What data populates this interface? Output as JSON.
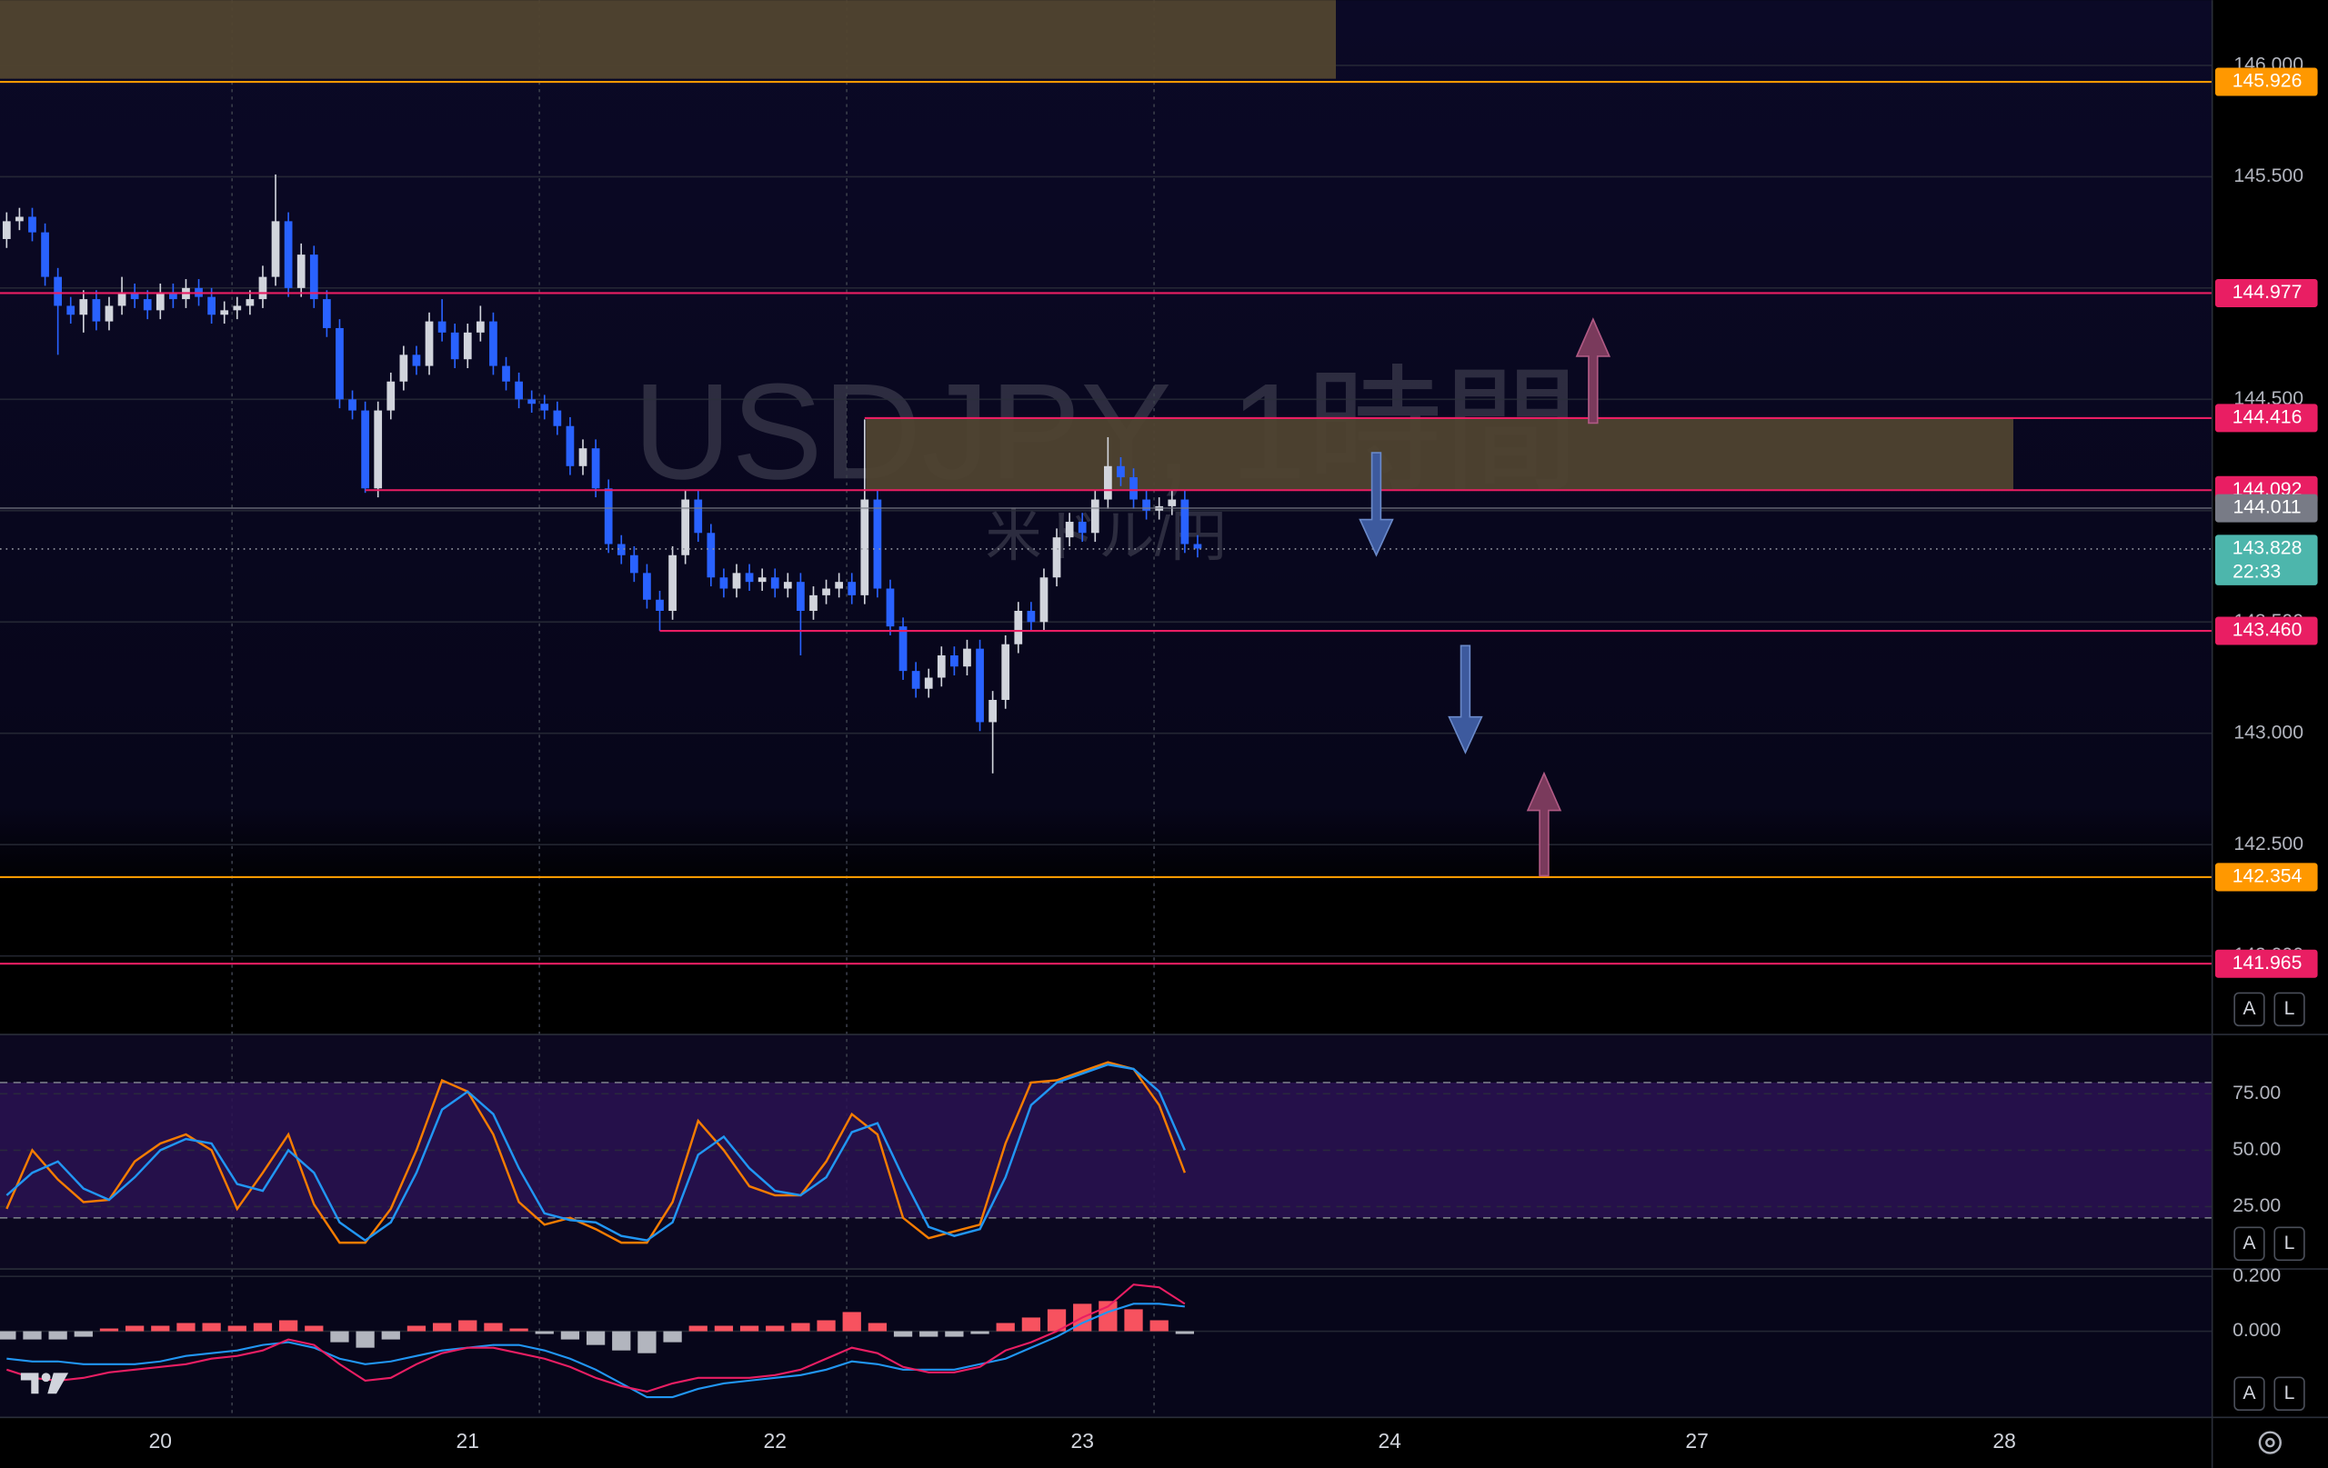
{
  "chart_data": [
    {
      "type": "candlestick",
      "watermark": {
        "symbol": "USDJPY, 1時間",
        "name": "米ドル/円"
      },
      "x": [
        -12,
        -11,
        -10,
        -9,
        -8,
        -7,
        -6,
        -5,
        -4,
        -3,
        -2,
        -1,
        0,
        1,
        2,
        3,
        4,
        5,
        6,
        7,
        8,
        9,
        10,
        11,
        12,
        13,
        14,
        15,
        16,
        17,
        18,
        19,
        20,
        21,
        22,
        23,
        24,
        25,
        26,
        27,
        28,
        29,
        30,
        31,
        32,
        33,
        34,
        35,
        36,
        37,
        38,
        39,
        40,
        41,
        42,
        43,
        44,
        45,
        46,
        47,
        48,
        49,
        50,
        51,
        52,
        53,
        54,
        55,
        56,
        57,
        58,
        59,
        60,
        61,
        62,
        63,
        64,
        65,
        66,
        67,
        68,
        69,
        70,
        71,
        72,
        73,
        74,
        75,
        76,
        77,
        78,
        79,
        80,
        81
      ],
      "open": [
        145.22,
        145.3,
        145.32,
        145.25,
        145.05,
        144.92,
        144.88,
        144.95,
        144.85,
        144.92,
        144.98,
        144.95,
        144.9,
        144.98,
        144.95,
        145.0,
        144.96,
        144.88,
        144.9,
        144.92,
        144.95,
        145.05,
        145.3,
        145.0,
        145.15,
        144.95,
        144.82,
        144.5,
        144.45,
        144.1,
        144.45,
        144.58,
        144.7,
        144.65,
        144.85,
        144.8,
        144.68,
        144.8,
        144.85,
        144.65,
        144.58,
        144.5,
        144.48,
        144.45,
        144.38,
        144.2,
        144.28,
        144.1,
        143.85,
        143.8,
        143.72,
        143.6,
        143.55,
        143.8,
        144.05,
        143.9,
        143.7,
        143.65,
        143.72,
        143.68,
        143.7,
        143.65,
        143.68,
        143.55,
        143.62,
        143.65,
        143.68,
        143.62,
        144.05,
        143.65,
        143.48,
        143.28,
        143.2,
        143.25,
        143.35,
        143.3,
        143.38,
        143.05,
        143.15,
        143.4,
        143.55,
        143.5,
        143.7,
        143.88,
        143.95,
        143.9,
        144.05,
        144.2,
        144.15,
        144.05,
        144.0,
        144.02,
        144.05,
        143.85
      ],
      "high": [
        145.34,
        145.36,
        145.36,
        145.29,
        145.09,
        144.96,
        144.99,
        144.99,
        144.96,
        145.05,
        145.02,
        144.99,
        145.02,
        145.02,
        145.04,
        145.04,
        145.0,
        144.94,
        144.96,
        144.99,
        145.1,
        145.51,
        145.34,
        145.2,
        145.19,
        144.99,
        144.86,
        144.54,
        144.49,
        144.49,
        144.62,
        144.74,
        144.74,
        144.89,
        144.95,
        144.84,
        144.84,
        144.92,
        144.89,
        144.69,
        144.62,
        144.54,
        144.52,
        144.49,
        144.42,
        144.32,
        144.32,
        144.14,
        143.89,
        143.84,
        143.76,
        143.64,
        143.84,
        144.09,
        144.09,
        143.94,
        143.74,
        143.76,
        143.76,
        143.74,
        143.74,
        143.72,
        143.72,
        143.66,
        143.69,
        143.72,
        143.72,
        144.41,
        144.09,
        143.69,
        143.52,
        143.32,
        143.29,
        143.39,
        143.39,
        143.42,
        143.42,
        143.19,
        143.44,
        143.59,
        143.59,
        143.74,
        143.92,
        143.99,
        143.99,
        144.09,
        144.33,
        144.24,
        144.19,
        144.09,
        144.06,
        144.09,
        144.09,
        143.89
      ],
      "low": [
        145.18,
        145.26,
        145.21,
        145.01,
        144.7,
        144.84,
        144.8,
        144.81,
        144.81,
        144.88,
        144.91,
        144.86,
        144.86,
        144.91,
        144.91,
        144.92,
        144.84,
        144.84,
        144.86,
        144.88,
        144.91,
        145.01,
        144.96,
        144.96,
        144.91,
        144.78,
        144.46,
        144.41,
        144.08,
        144.06,
        144.41,
        144.54,
        144.61,
        144.61,
        144.76,
        144.64,
        144.64,
        144.76,
        144.61,
        144.54,
        144.46,
        144.44,
        144.41,
        144.34,
        144.16,
        144.16,
        144.06,
        143.81,
        143.76,
        143.68,
        143.56,
        143.46,
        143.51,
        143.76,
        143.86,
        143.66,
        143.61,
        143.61,
        143.64,
        143.64,
        143.61,
        143.61,
        143.35,
        143.51,
        143.58,
        143.61,
        143.58,
        143.58,
        143.61,
        143.44,
        143.24,
        143.16,
        143.16,
        143.21,
        143.26,
        143.26,
        143.01,
        142.82,
        143.11,
        143.36,
        143.46,
        143.46,
        143.66,
        143.84,
        143.86,
        143.86,
        144.01,
        144.11,
        144.01,
        143.96,
        143.96,
        143.98,
        143.81,
        143.79
      ],
      "close": [
        145.3,
        145.32,
        145.25,
        145.05,
        144.92,
        144.88,
        144.95,
        144.85,
        144.92,
        144.98,
        144.95,
        144.9,
        144.98,
        144.95,
        145.0,
        144.96,
        144.88,
        144.9,
        144.92,
        144.95,
        145.05,
        145.3,
        145.0,
        145.15,
        144.95,
        144.82,
        144.5,
        144.45,
        144.1,
        144.45,
        144.58,
        144.7,
        144.65,
        144.85,
        144.8,
        144.68,
        144.8,
        144.85,
        144.65,
        144.58,
        144.5,
        144.48,
        144.45,
        144.38,
        144.2,
        144.28,
        144.1,
        143.85,
        143.8,
        143.72,
        143.6,
        143.55,
        143.8,
        144.05,
        143.9,
        143.7,
        143.65,
        143.72,
        143.68,
        143.7,
        143.65,
        143.68,
        143.55,
        143.62,
        143.65,
        143.68,
        143.62,
        144.05,
        143.65,
        143.48,
        143.28,
        143.2,
        143.25,
        143.35,
        143.3,
        143.38,
        143.05,
        143.15,
        143.4,
        143.55,
        143.5,
        143.7,
        143.88,
        143.95,
        143.9,
        144.05,
        144.2,
        144.15,
        144.05,
        144.0,
        144.02,
        144.05,
        143.85,
        143.83
      ],
      "up_color": "#d1d4dc",
      "down_color": "#2962ff",
      "xlim": [
        -12.52,
        160.23
      ],
      "ylim": [
        141.647,
        146.293
      ],
      "xticks": [
        {
          "value": 0,
          "label": "20"
        },
        {
          "value": 24,
          "label": "21"
        },
        {
          "value": 48,
          "label": "22"
        },
        {
          "value": 72,
          "label": "23"
        },
        {
          "value": 96,
          "label": "24"
        },
        {
          "value": 120,
          "label": "27"
        },
        {
          "value": 144,
          "label": "28"
        }
      ],
      "yticks": [
        {
          "value": 142,
          "label": "142.000"
        },
        {
          "value": 142.5,
          "label": "142.500"
        },
        {
          "value": 143,
          "label": "143.000"
        },
        {
          "value": 143.5,
          "label": "143.500"
        },
        {
          "value": 144,
          "label": "144.000"
        },
        {
          "value": 144.5,
          "label": "144.500"
        },
        {
          "value": 145,
          "label": "145.000"
        },
        {
          "value": 145.5,
          "label": "145.500"
        },
        {
          "value": 146,
          "label": "146.000"
        }
      ],
      "grid": true,
      "session_breaks": [
        5.6,
        29.6,
        53.6,
        77.6
      ],
      "zones": [
        {
          "from": -12.52,
          "to": 91.8,
          "top": 146.293,
          "bottom": 145.94,
          "color": "#51442f"
        },
        {
          "from": 55.1,
          "to": 144.7,
          "top": 144.416,
          "bottom": 144.092,
          "color": "#4f4330"
        }
      ],
      "price_lines": [
        {
          "price": 145.926,
          "color": "#ff9800"
        },
        {
          "price": 144.977,
          "color": "#e91e63"
        },
        {
          "price": 144.416,
          "color": "#e91e63",
          "from": 55
        },
        {
          "price": 144.092,
          "color": "#e91e63",
          "from": 16
        },
        {
          "price": 144.011,
          "color": "#787b86"
        },
        {
          "price": 143.828,
          "color": "#4db6ac",
          "style": "dotted",
          "countdown": "22:33"
        },
        {
          "price": 143.46,
          "label": "143.460",
          "color": "#e91e63",
          "from": 39
        },
        {
          "price": 142.354,
          "color": "#ff9800"
        },
        {
          "price": 141.965,
          "color": "#e91e63"
        }
      ]
    },
    {
      "type": "line",
      "x": [
        -12,
        -10,
        -8,
        -6,
        -4,
        -2,
        0,
        2,
        4,
        6,
        8,
        10,
        12,
        14,
        16,
        18,
        20,
        22,
        24,
        26,
        28,
        30,
        32,
        34,
        36,
        38,
        40,
        42,
        44,
        46,
        48,
        50,
        52,
        54,
        56,
        58,
        60,
        62,
        64,
        66,
        68,
        70,
        72,
        74,
        76,
        78,
        80
      ],
      "series": [
        {
          "color": "#f57c00",
          "values": [
            24,
            50,
            37,
            27,
            28,
            45,
            53,
            57,
            50,
            24,
            40,
            57,
            26,
            9,
            9,
            24,
            50,
            81,
            76,
            57,
            27,
            17,
            20,
            15,
            9,
            9,
            27,
            63,
            50,
            34,
            30,
            30,
            45,
            66,
            57,
            20,
            11,
            14,
            17,
            53,
            80,
            81,
            85,
            89,
            86,
            70,
            40
          ]
        },
        {
          "color": "#2196f3",
          "values": [
            30,
            40,
            45,
            33,
            28,
            38,
            50,
            55,
            53,
            35,
            32,
            50,
            40,
            18,
            10,
            18,
            40,
            68,
            76,
            66,
            42,
            22,
            19,
            18,
            12,
            10,
            18,
            48,
            56,
            42,
            32,
            30,
            38,
            58,
            62,
            38,
            16,
            12,
            15,
            38,
            70,
            80,
            84,
            88,
            86,
            76,
            50
          ]
        }
      ],
      "band": [
        20,
        80
      ],
      "ylim": [
        -0.7,
        101.3
      ],
      "yticks": [
        {
          "value": 25,
          "label": "25.00"
        },
        {
          "value": 50,
          "label": "50.00"
        },
        {
          "value": 75,
          "label": "75.00"
        }
      ]
    },
    {
      "type": "macd",
      "x": [
        -12,
        -10,
        -8,
        -6,
        -4,
        -2,
        0,
        2,
        4,
        6,
        8,
        10,
        12,
        14,
        16,
        18,
        20,
        22,
        24,
        26,
        28,
        30,
        32,
        34,
        36,
        38,
        40,
        42,
        44,
        46,
        48,
        50,
        52,
        54,
        56,
        58,
        60,
        62,
        64,
        66,
        68,
        70,
        72,
        74,
        76,
        78,
        80
      ],
      "histogram": {
        "positive_color": "#f7525f",
        "negative_color": "#b2b5be",
        "values": [
          -0.03,
          -0.03,
          -0.03,
          -0.02,
          0.01,
          0.02,
          0.02,
          0.03,
          0.03,
          0.02,
          0.03,
          0.04,
          0.02,
          -0.04,
          -0.06,
          -0.03,
          0.02,
          0.03,
          0.04,
          0.03,
          0.01,
          -0.01,
          -0.03,
          -0.05,
          -0.07,
          -0.08,
          -0.04,
          0.02,
          0.02,
          0.02,
          0.02,
          0.03,
          0.04,
          0.07,
          0.03,
          -0.02,
          -0.02,
          -0.02,
          -0.01,
          0.03,
          0.05,
          0.08,
          0.1,
          0.11,
          0.08,
          0.04,
          -0.01
        ]
      },
      "series": [
        {
          "color": "#2196f3",
          "values": [
            -0.1,
            -0.11,
            -0.11,
            -0.12,
            -0.12,
            -0.12,
            -0.11,
            -0.09,
            -0.08,
            -0.07,
            -0.05,
            -0.04,
            -0.06,
            -0.1,
            -0.12,
            -0.11,
            -0.09,
            -0.07,
            -0.06,
            -0.05,
            -0.05,
            -0.07,
            -0.1,
            -0.14,
            -0.19,
            -0.24,
            -0.24,
            -0.21,
            -0.19,
            -0.18,
            -0.17,
            -0.16,
            -0.14,
            -0.11,
            -0.12,
            -0.14,
            -0.14,
            -0.14,
            -0.12,
            -0.1,
            -0.06,
            -0.02,
            0.03,
            0.07,
            0.1,
            0.1,
            0.09
          ]
        },
        {
          "color": "#e91e63",
          "values": [
            -0.14,
            -0.17,
            -0.18,
            -0.17,
            -0.15,
            -0.14,
            -0.13,
            -0.12,
            -0.1,
            -0.09,
            -0.07,
            -0.03,
            -0.05,
            -0.12,
            -0.18,
            -0.17,
            -0.12,
            -0.08,
            -0.06,
            -0.06,
            -0.08,
            -0.1,
            -0.13,
            -0.17,
            -0.2,
            -0.22,
            -0.19,
            -0.17,
            -0.17,
            -0.17,
            -0.16,
            -0.14,
            -0.1,
            -0.06,
            -0.08,
            -0.13,
            -0.15,
            -0.15,
            -0.13,
            -0.07,
            -0.04,
            0.0,
            0.05,
            0.09,
            0.17,
            0.16,
            0.1
          ]
        }
      ],
      "ylim": [
        -0.314,
        0.216
      ],
      "yticks": [
        {
          "value": 0,
          "label": "0.000"
        },
        {
          "value": 0.2,
          "label": "0.200"
        }
      ]
    }
  ],
  "ui": {
    "auto": "A",
    "log": "L"
  }
}
